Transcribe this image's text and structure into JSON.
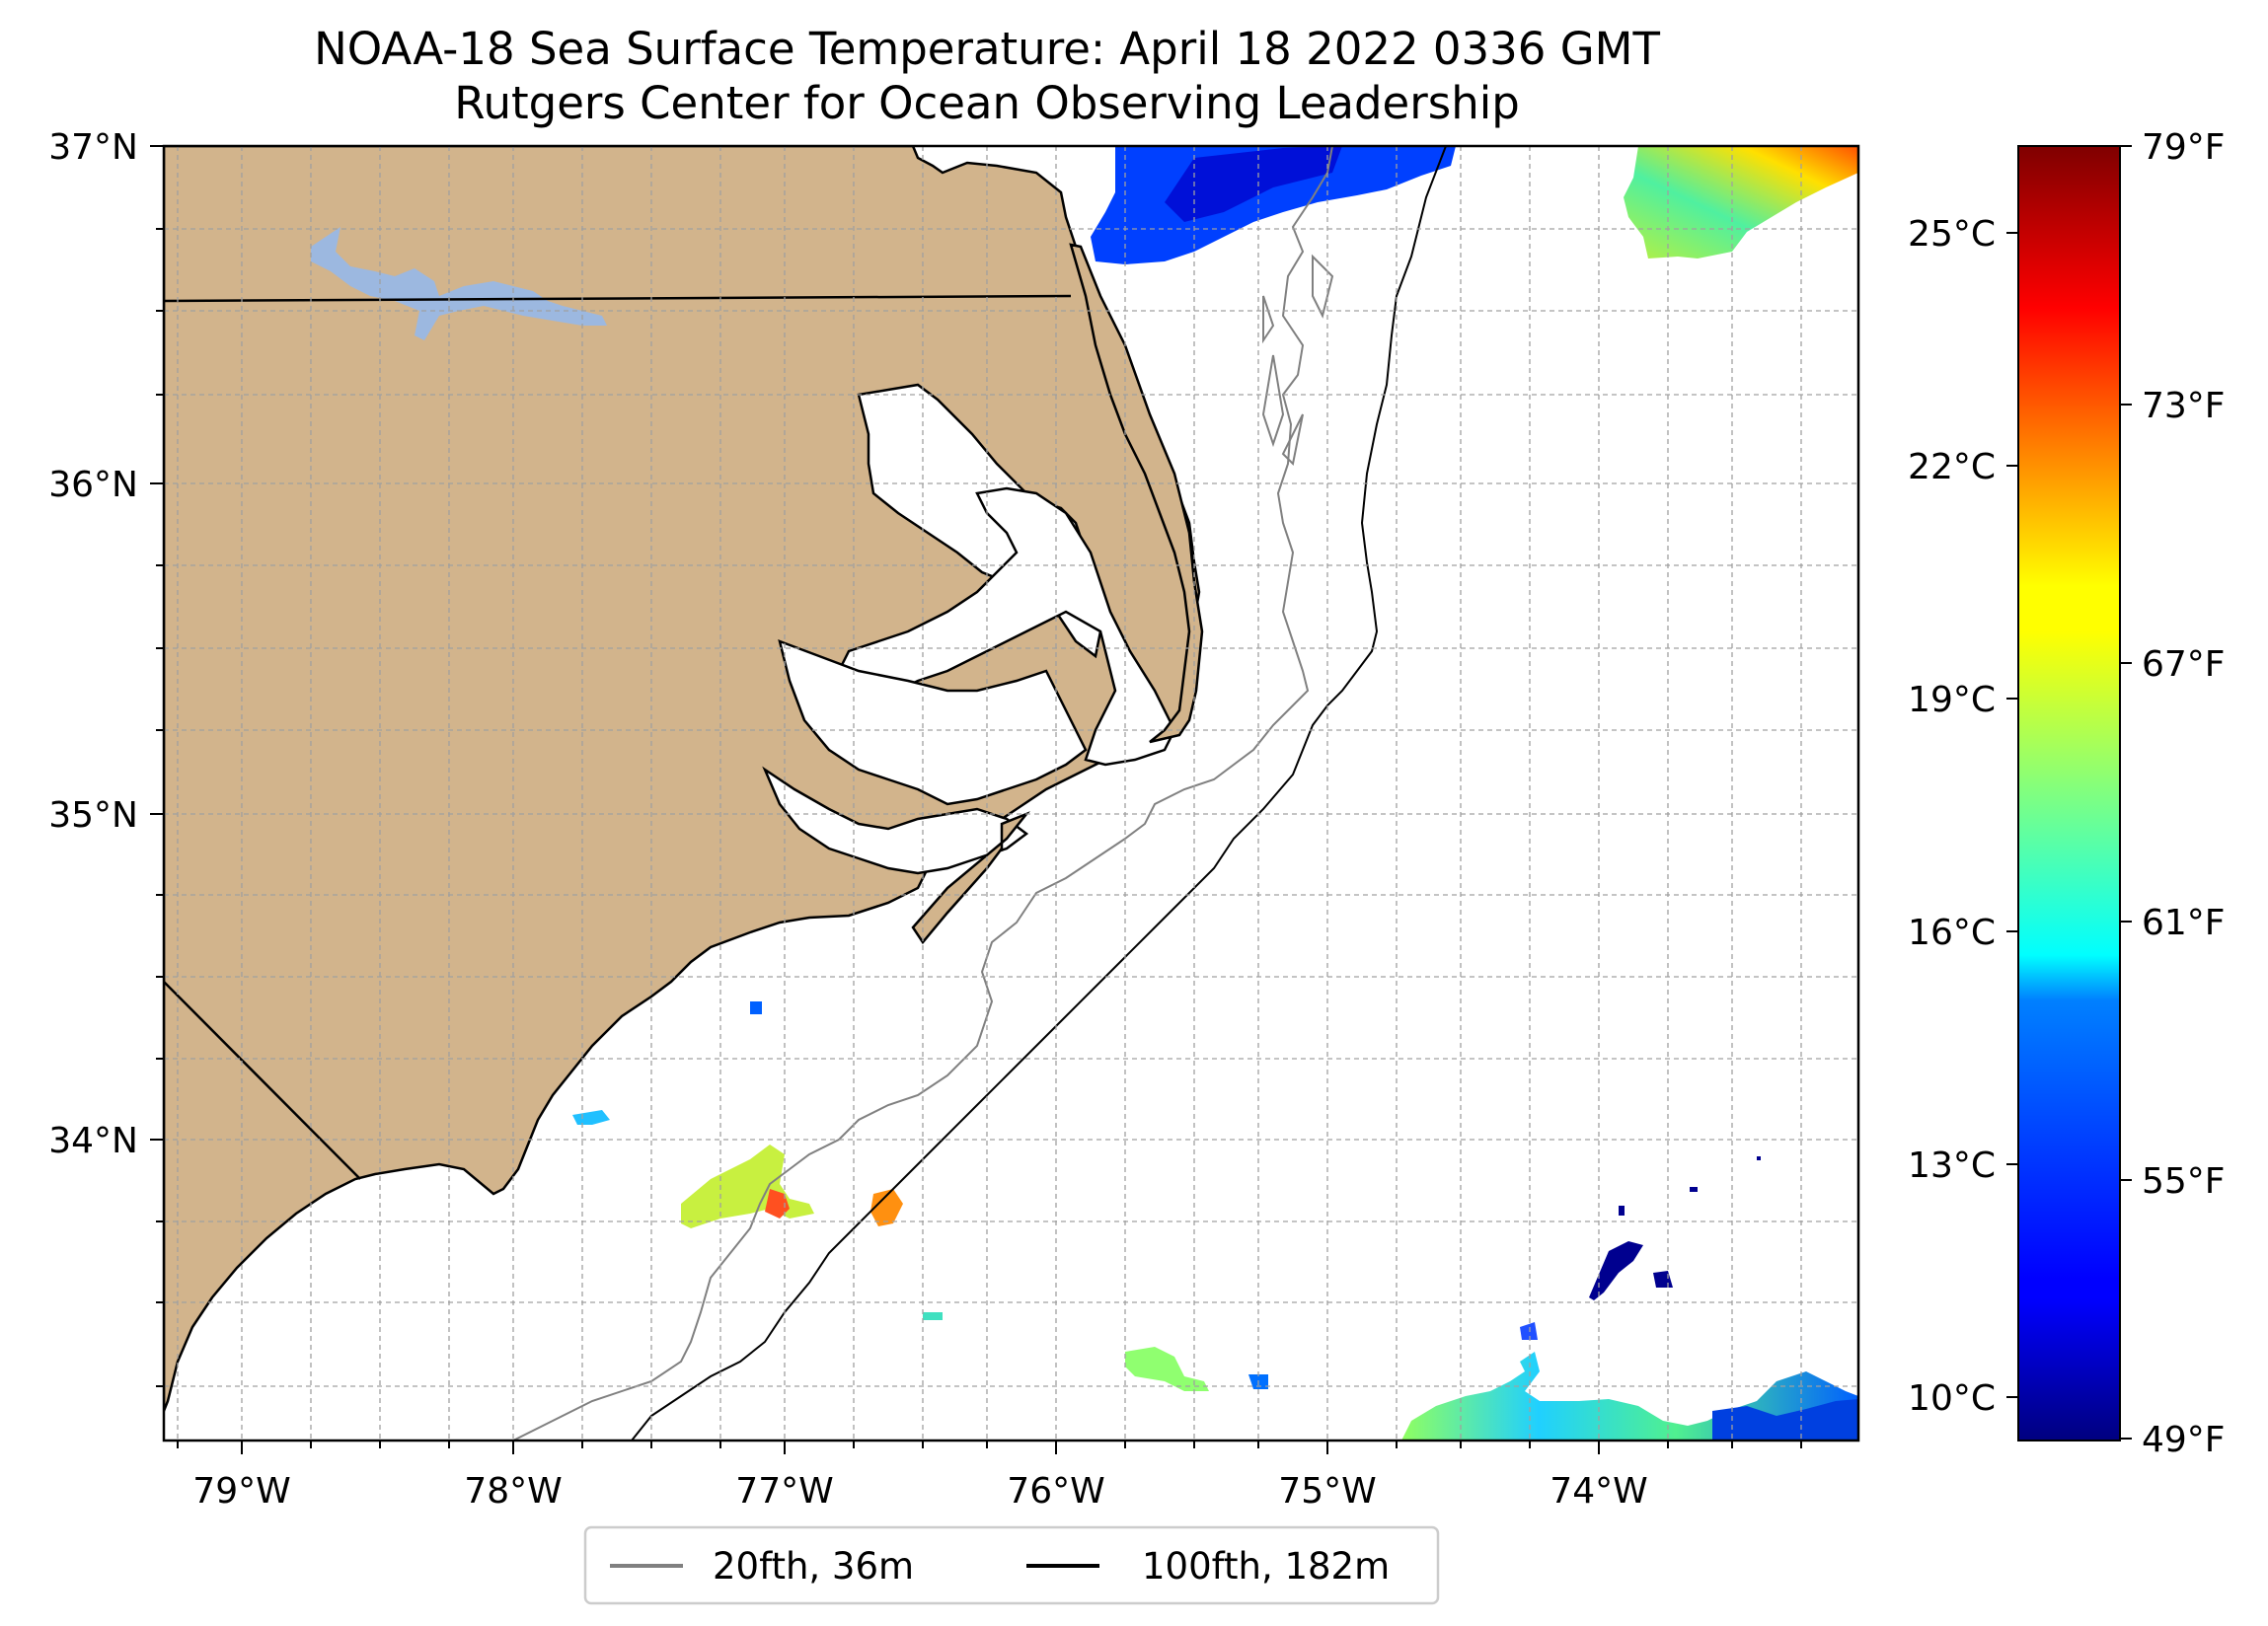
{
  "title": {
    "line1": "NOAA-18 Sea Surface Temperature: April 18 2022 0336 GMT",
    "line2": "Rutgers Center for Ocean Observing Leadership"
  },
  "map": {
    "extent": {
      "lon_min": -79.3,
      "lon_max": -73.0,
      "lat_min": 33.1,
      "lat_max": 37.0
    },
    "lon_ticks": [
      {
        "value": -79,
        "label": "79°W"
      },
      {
        "value": -78,
        "label": "78°W"
      },
      {
        "value": -77,
        "label": "77°W"
      },
      {
        "value": -76,
        "label": "76°W"
      },
      {
        "value": -75,
        "label": "75°W"
      },
      {
        "value": -74,
        "label": "74°W"
      }
    ],
    "lat_ticks": [
      {
        "value": 37,
        "label": "37°N"
      },
      {
        "value": 36,
        "label": "36°N"
      },
      {
        "value": 35,
        "label": "35°N"
      },
      {
        "value": 34,
        "label": "34°N"
      }
    ],
    "gridlines": true,
    "land_color": "#d2b48c",
    "lake_color": "#9cb8e0"
  },
  "legend": {
    "placement": "below-center",
    "items": [
      {
        "label": "20fth, 36m",
        "color": "#808080"
      },
      {
        "label": "100fth, 182m",
        "color": "#000000"
      }
    ]
  },
  "colorbar": {
    "colormap": "jet",
    "f_min": 49,
    "f_max": 79,
    "f_ticks": [
      {
        "value": 79,
        "label": "79°F"
      },
      {
        "value": 73,
        "label": "73°F"
      },
      {
        "value": 67,
        "label": "67°F"
      },
      {
        "value": 61,
        "label": "61°F"
      },
      {
        "value": 55,
        "label": "55°F"
      },
      {
        "value": 49,
        "label": "49°F"
      }
    ],
    "c_ticks": [
      {
        "value": 25,
        "label": "25°C"
      },
      {
        "value": 22,
        "label": "22°C"
      },
      {
        "value": 19,
        "label": "19°C"
      },
      {
        "value": 16,
        "label": "16°C"
      },
      {
        "value": 13,
        "label": "13°C"
      },
      {
        "value": 10,
        "label": "10°C"
      }
    ]
  },
  "sst_patches": [
    {
      "name": "patch-northeast-corner",
      "temp_f": 65
    },
    {
      "name": "patch-north-center",
      "temp_f": 53
    },
    {
      "name": "patch-onslow-bay",
      "temp_f": 67
    },
    {
      "name": "patch-southeast",
      "temp_f": 60
    },
    {
      "name": "patch-cold-offshore",
      "temp_f": 49
    }
  ]
}
